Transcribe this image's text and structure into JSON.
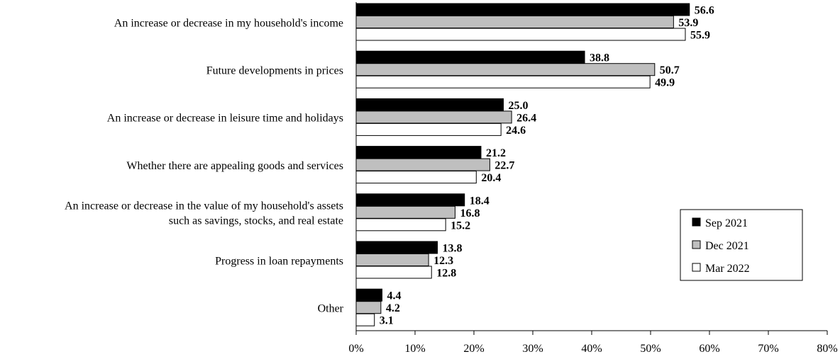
{
  "chart_data": {
    "type": "bar",
    "orientation": "horizontal",
    "title": "",
    "xlabel": "",
    "ylabel": "",
    "categories": [
      [
        "An increase or decrease in my household's income"
      ],
      [
        "Future developments in prices"
      ],
      [
        "An increase or decrease in leisure time and holidays"
      ],
      [
        "Whether there are appealing goods and services"
      ],
      [
        "An increase or decrease in the value of my household's assets",
        "such as savings, stocks, and real estate"
      ],
      [
        "Progress in loan repayments"
      ],
      [
        "Other"
      ]
    ],
    "series": [
      {
        "name": "Sep 2021",
        "color": "#000000",
        "values": [
          56.6,
          38.8,
          25.0,
          21.2,
          18.4,
          13.8,
          4.4
        ],
        "labels": [
          "56.6",
          "38.8",
          "25.0",
          "21.2",
          "18.4",
          "13.8",
          "4.4"
        ]
      },
      {
        "name": "Dec 2021",
        "color": "#bfbfbf",
        "values": [
          53.9,
          50.7,
          26.4,
          22.7,
          16.8,
          12.3,
          4.2
        ],
        "labels": [
          "53.9",
          "50.7",
          "26.4",
          "22.7",
          "16.8",
          "12.3",
          "4.2"
        ]
      },
      {
        "name": "Mar 2022",
        "color": "#ffffff",
        "values": [
          55.9,
          49.9,
          24.6,
          20.4,
          15.2,
          12.8,
          3.1
        ],
        "labels": [
          "55.9",
          "49.9",
          "24.6",
          "20.4",
          "15.2",
          "12.8",
          "3.1"
        ]
      }
    ],
    "xlim": [
      0,
      80
    ],
    "xticks": [
      0,
      10,
      20,
      30,
      40,
      50,
      60,
      70,
      80
    ],
    "xtick_labels": [
      "0%",
      "10%",
      "20%",
      "30%",
      "40%",
      "50%",
      "60%",
      "70%",
      "80%"
    ],
    "grid": false,
    "legend_position": "bottom-right",
    "outline_color": "#000000"
  }
}
